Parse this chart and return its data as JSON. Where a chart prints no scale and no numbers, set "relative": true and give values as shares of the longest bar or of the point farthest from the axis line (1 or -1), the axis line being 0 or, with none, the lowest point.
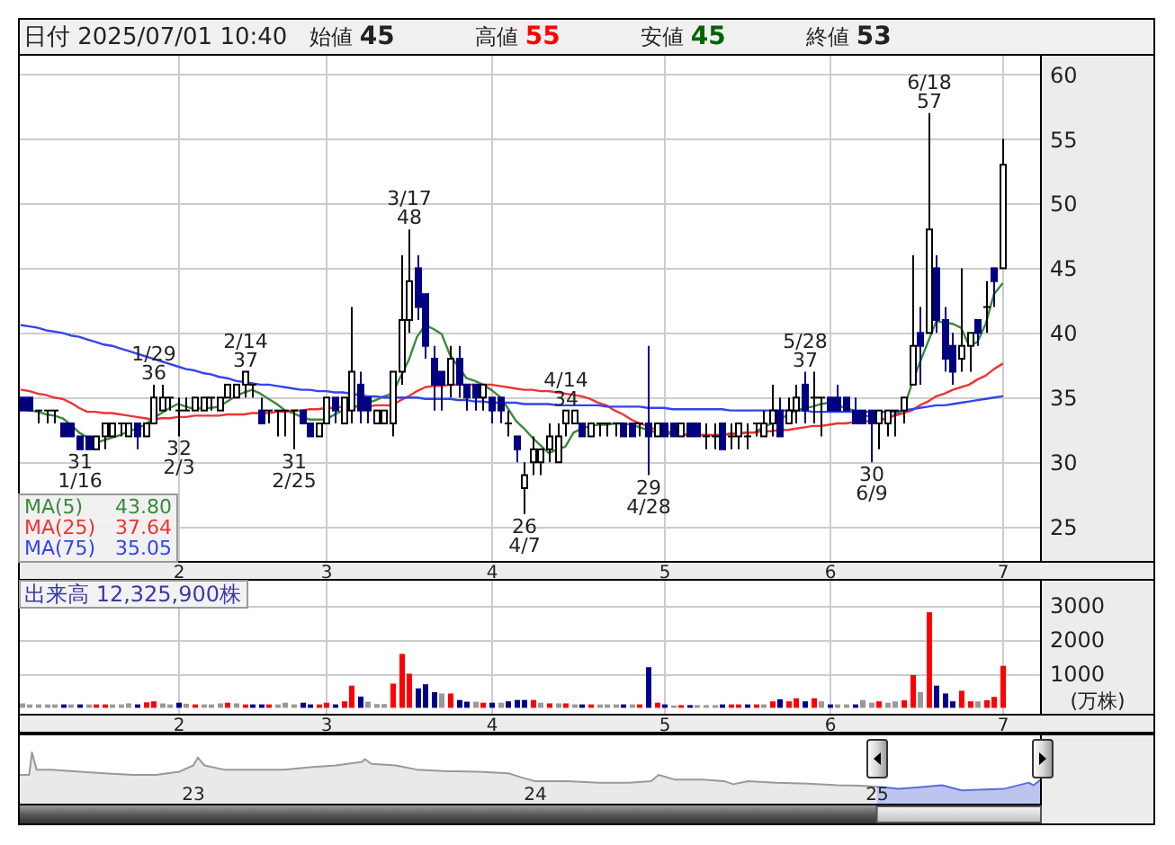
{
  "chart_data": [
    {
      "type": "candlestick",
      "title": "日付 2025/07/01 10:40",
      "annotations": [
        "始値 45",
        "高値 55",
        "安値 45",
        "終値 53"
      ],
      "categories": [
        null,
        null,
        null,
        null,
        null,
        null,
        null,
        null,
        null,
        null,
        null,
        null,
        null,
        null,
        null,
        null,
        null,
        null,
        null,
        "2",
        null,
        null,
        null,
        null,
        null,
        null,
        null,
        null,
        null,
        null,
        null,
        null,
        null,
        null,
        null,
        null,
        null,
        "3",
        null,
        null,
        null,
        null,
        null,
        null,
        null,
        null,
        null,
        null,
        null,
        null,
        null,
        null,
        null,
        null,
        null,
        null,
        null,
        "4",
        null,
        null,
        null,
        null,
        null,
        null,
        null,
        null,
        null,
        null,
        null,
        null,
        null,
        null,
        null,
        null,
        null,
        null,
        null,
        null,
        "5",
        null,
        null,
        null,
        null,
        null,
        null,
        null,
        null,
        null,
        null,
        null,
        null,
        null,
        null,
        null,
        null,
        null,
        null,
        null,
        "6",
        null,
        null,
        null,
        null,
        null,
        null,
        null,
        null,
        null,
        null,
        null,
        null,
        null,
        null,
        null,
        null,
        null,
        null,
        null,
        null,
        "7"
      ],
      "ohlc": [
        [
          35,
          35,
          34,
          34
        ],
        [
          35,
          35,
          34,
          34
        ],
        [
          34,
          34,
          33,
          34
        ],
        [
          34,
          34,
          33,
          34
        ],
        [
          34,
          34,
          33,
          34
        ],
        [
          33,
          33,
          32,
          32
        ],
        [
          33,
          33,
          32,
          32
        ],
        [
          32,
          32,
          31,
          31
        ],
        [
          32,
          32,
          31,
          31
        ],
        [
          31,
          32,
          31,
          32
        ],
        [
          32,
          33,
          31,
          33
        ],
        [
          32,
          33,
          32,
          33
        ],
        [
          33,
          33,
          32,
          33
        ],
        [
          32,
          33,
          32,
          33
        ],
        [
          33,
          33,
          31,
          32
        ],
        [
          32,
          33,
          32,
          33
        ],
        [
          33,
          36,
          33,
          35
        ],
        [
          34,
          36,
          34,
          35
        ],
        [
          35,
          35,
          34,
          35
        ],
        [
          34,
          35,
          32,
          34
        ],
        [
          34,
          35,
          34,
          34
        ],
        [
          34,
          35,
          34,
          35
        ],
        [
          34,
          35,
          34,
          35
        ],
        [
          35,
          35,
          34,
          35
        ],
        [
          34,
          35,
          34,
          35
        ],
        [
          35,
          36,
          35,
          36
        ],
        [
          35,
          36,
          35,
          36
        ],
        [
          36,
          37,
          35,
          37
        ],
        [
          36,
          36,
          35,
          36
        ],
        [
          34,
          35,
          33,
          33
        ],
        [
          34,
          34,
          33,
          34
        ],
        [
          34,
          34,
          32,
          34
        ],
        [
          34,
          34,
          32,
          34
        ],
        [
          34,
          34,
          31,
          34
        ],
        [
          34,
          34,
          33,
          33
        ],
        [
          33,
          33,
          32,
          32
        ],
        [
          32,
          33,
          32,
          33
        ],
        [
          33,
          35,
          33,
          35
        ],
        [
          35,
          35,
          33,
          34
        ],
        [
          33,
          35,
          33,
          35
        ],
        [
          34,
          42,
          33,
          37
        ],
        [
          36,
          37,
          33,
          34
        ],
        [
          35,
          35,
          33,
          34
        ],
        [
          33,
          34,
          33,
          34
        ],
        [
          33,
          34,
          33,
          34
        ],
        [
          33,
          37,
          32,
          37
        ],
        [
          37,
          46,
          36,
          41
        ],
        [
          41,
          48,
          40,
          44
        ],
        [
          45,
          46,
          41,
          42
        ],
        [
          43,
          43,
          38,
          39
        ],
        [
          38,
          39,
          34,
          36
        ],
        [
          37,
          37,
          34,
          36
        ],
        [
          36,
          39,
          35,
          38
        ],
        [
          38,
          39,
          35,
          36
        ],
        [
          36,
          36,
          34,
          35
        ],
        [
          36,
          36,
          34,
          35
        ],
        [
          35,
          36,
          34,
          36
        ],
        [
          35,
          35,
          33,
          34
        ],
        [
          35,
          35,
          33,
          34
        ],
        [
          33,
          34,
          32,
          33
        ],
        [
          32,
          32,
          30,
          31
        ],
        [
          28,
          30,
          26,
          29
        ],
        [
          30,
          32,
          29,
          31
        ],
        [
          30,
          31,
          29,
          31
        ],
        [
          31,
          33,
          30,
          32
        ],
        [
          30,
          33,
          30,
          32
        ],
        [
          33,
          34,
          32,
          34
        ],
        [
          33,
          34,
          33,
          34
        ],
        [
          33,
          33,
          32,
          32
        ],
        [
          32,
          33,
          32,
          33
        ],
        [
          33,
          33,
          32,
          33
        ],
        [
          33,
          33,
          32,
          33
        ],
        [
          33,
          33,
          32,
          33
        ],
        [
          33,
          33,
          32,
          32
        ],
        [
          33,
          33,
          32,
          32
        ],
        [
          33,
          33,
          32,
          33
        ],
        [
          33,
          39,
          29,
          32
        ],
        [
          32,
          33,
          32,
          33
        ],
        [
          33,
          33,
          32,
          32
        ],
        [
          33,
          33,
          32,
          32
        ],
        [
          32,
          33,
          32,
          33
        ],
        [
          33,
          33,
          32,
          32
        ],
        [
          33,
          33,
          32,
          32
        ],
        [
          32,
          33,
          31,
          32
        ],
        [
          32,
          33,
          31,
          32
        ],
        [
          33,
          33,
          31,
          31
        ],
        [
          32,
          33,
          31,
          32
        ],
        [
          32,
          33,
          31,
          33
        ],
        [
          32,
          33,
          31,
          32
        ],
        [
          33,
          33,
          32,
          33
        ],
        [
          32,
          34,
          32,
          33
        ],
        [
          33,
          36,
          32,
          34
        ],
        [
          34,
          35,
          32,
          32
        ],
        [
          33,
          35,
          33,
          34
        ],
        [
          34,
          36,
          33,
          35
        ],
        [
          36,
          37,
          33,
          34
        ],
        [
          35,
          37,
          33,
          35
        ],
        [
          35,
          35,
          32,
          35
        ],
        [
          35,
          35,
          34,
          34
        ],
        [
          35,
          36,
          34,
          34
        ],
        [
          35,
          35,
          34,
          34
        ],
        [
          34,
          35,
          33,
          33
        ],
        [
          34,
          34,
          33,
          33
        ],
        [
          34,
          34,
          30,
          33
        ],
        [
          33,
          34,
          31,
          34
        ],
        [
          33,
          34,
          32,
          34
        ],
        [
          34,
          34,
          32,
          34
        ],
        [
          34,
          35,
          33,
          35
        ],
        [
          36,
          46,
          36,
          39
        ],
        [
          40,
          42,
          36,
          39
        ],
        [
          40,
          57,
          40,
          48
        ],
        [
          45,
          46,
          40,
          41
        ],
        [
          41,
          42,
          37,
          38
        ],
        [
          39,
          40,
          36,
          37
        ],
        [
          38,
          45,
          37,
          39
        ],
        [
          39,
          40,
          37,
          40
        ],
        [
          41,
          41,
          39,
          40
        ],
        [
          42,
          44,
          40,
          42
        ],
        [
          45,
          45,
          42,
          44
        ],
        [
          45,
          55,
          45,
          53
        ]
      ],
      "value_labels": [
        null,
        null,
        null,
        null,
        null,
        null,
        null,
        "31\n1/16",
        null,
        null,
        null,
        null,
        null,
        null,
        null,
        null,
        "1/29\n36",
        null,
        null,
        "32\n2/3",
        null,
        null,
        null,
        null,
        null,
        null,
        null,
        "2/14\n37",
        null,
        null,
        null,
        null,
        null,
        "31\n2/25",
        null,
        null,
        null,
        null,
        null,
        null,
        null,
        null,
        null,
        null,
        null,
        null,
        null,
        "3/17\n48",
        null,
        null,
        null,
        null,
        null,
        null,
        null,
        null,
        null,
        null,
        null,
        null,
        null,
        "26\n4/7",
        null,
        null,
        null,
        null,
        "4/14\n34",
        null,
        null,
        null,
        null,
        null,
        null,
        null,
        null,
        null,
        "29\n4/28",
        null,
        null,
        null,
        null,
        null,
        null,
        null,
        null,
        null,
        null,
        null,
        null,
        null,
        null,
        null,
        null,
        null,
        null,
        "5/28\n37",
        null,
        null,
        null,
        null,
        null,
        null,
        null,
        "30\n6/9",
        null,
        null,
        null,
        null,
        null,
        null,
        "6/18\n57",
        null,
        null,
        null,
        null,
        null,
        null,
        null,
        null,
        null
      ],
      "colors": [
        "#000080",
        "#000080",
        "#000000",
        "#000000",
        "#000000",
        "#000080",
        "#000080",
        "#000080",
        "#000080",
        "#ffffff",
        "#ffffff",
        "#ffffff",
        "#000000",
        "#ffffff",
        "#000080",
        "#ffffff",
        "#ffffff",
        "#ffffff",
        "#000000",
        "#000000",
        "#000000",
        "#ffffff",
        "#ffffff",
        "#000000",
        "#ffffff",
        "#ffffff",
        "#ffffff",
        "#ffffff",
        "#000000",
        "#000080",
        "#000000",
        "#000000",
        "#000000",
        "#000000",
        "#000080",
        "#000080",
        "#ffffff",
        "#ffffff",
        "#000080",
        "#ffffff",
        "#ffffff",
        "#000080",
        "#000080",
        "#ffffff",
        "#ffffff",
        "#ffffff",
        "#ffffff",
        "#ffffff",
        "#000080",
        "#000080",
        "#000080",
        "#000080",
        "#ffffff",
        "#000080",
        "#000080",
        "#000080",
        "#ffffff",
        "#000080",
        "#000080",
        "#000000",
        "#000080",
        "#ffffff",
        "#ffffff",
        "#ffffff",
        "#ffffff",
        "#ffffff",
        "#ffffff",
        "#ffffff",
        "#000080",
        "#ffffff",
        "#000000",
        "#000000",
        "#000000",
        "#000080",
        "#000080",
        "#000000",
        "#000080",
        "#ffffff",
        "#000080",
        "#000080",
        "#ffffff",
        "#000080",
        "#000080",
        "#000000",
        "#000000",
        "#000080",
        "#000000",
        "#ffffff",
        "#000000",
        "#000000",
        "#ffffff",
        "#ffffff",
        "#000080",
        "#ffffff",
        "#ffffff",
        "#000080",
        "#000000",
        "#000000",
        "#000080",
        "#000080",
        "#000080",
        "#000080",
        "#000080",
        "#000080",
        "#ffffff",
        "#ffffff",
        "#000000",
        "#ffffff",
        "#ffffff",
        "#000080",
        "#ffffff",
        "#000080",
        "#000080",
        "#000080",
        "#ffffff",
        "#ffffff",
        "#000080",
        "#000000",
        "#000080",
        "#ffffff"
      ],
      "series": [
        {
          "name": "MA(5) 43.80",
          "type": "line",
          "color": "#3a8a3a",
          "values": [
            34.1,
            34.0,
            33.9,
            33.7,
            33.6,
            33.4,
            32.9,
            32.3,
            31.9,
            31.5,
            31.7,
            31.9,
            32.1,
            32.4,
            32.6,
            32.9,
            33.4,
            33.8,
            34.2,
            34.5,
            34.3,
            34.1,
            34.2,
            34.2,
            34.3,
            34.7,
            35.1,
            35.4,
            35.6,
            35.3,
            34.9,
            34.5,
            34.0,
            33.8,
            33.5,
            33.3,
            33.3,
            33.3,
            33.7,
            34.0,
            34.2,
            34.4,
            34.6,
            34.8,
            35.1,
            35.3,
            36.6,
            37.9,
            39.7,
            40.6,
            40.3,
            39.9,
            38.3,
            37.4,
            36.5,
            36.3,
            36.0,
            35.6,
            35.1,
            34.2,
            33.2,
            32.6,
            31.9,
            31.3,
            30.7,
            31.0,
            31.2,
            32.3,
            32.6,
            32.8,
            32.9,
            32.9,
            33.0,
            33.0,
            32.9,
            32.7,
            32.5,
            32.3,
            32.2,
            32.2,
            32.1,
            32.1,
            32.1,
            32.1,
            32.1,
            32.1,
            32.2,
            32.2,
            32.3,
            32.3,
            32.7,
            33.0,
            33.3,
            33.7,
            34.0,
            34.2,
            34.3,
            34.5,
            34.6,
            34.4,
            34.2,
            34.0,
            33.7,
            33.5,
            33.4,
            33.3,
            33.7,
            34.0,
            36.0,
            37.7,
            39.3,
            40.9,
            40.8,
            40.7,
            40.4,
            39.0,
            39.3,
            40.7,
            43.0,
            43.8
          ]
        },
        {
          "name": "MA(25) 37.64",
          "type": "line",
          "color": "#ee3333",
          "values": [
            35.6,
            35.5,
            35.3,
            35.2,
            35.0,
            34.9,
            34.6,
            34.2,
            33.9,
            33.9,
            33.8,
            33.8,
            33.7,
            33.6,
            33.5,
            33.4,
            33.3,
            33.4,
            33.4,
            33.5,
            33.5,
            33.6,
            33.6,
            33.6,
            33.6,
            33.7,
            33.7,
            33.7,
            33.8,
            33.8,
            33.8,
            33.9,
            33.9,
            34.0,
            34.0,
            34.1,
            34.1,
            34.2,
            34.2,
            34.3,
            34.3,
            34.3,
            34.3,
            34.4,
            34.4,
            34.4,
            34.8,
            35.1,
            35.5,
            35.8,
            35.9,
            35.9,
            36.0,
            36.0,
            36.0,
            36.0,
            36.0,
            36.0,
            35.9,
            35.8,
            35.7,
            35.6,
            35.6,
            35.5,
            35.5,
            35.4,
            35.3,
            35.2,
            35.1,
            34.9,
            34.6,
            34.4,
            34.0,
            33.7,
            33.3,
            33.0,
            32.8,
            32.5,
            32.4,
            32.3,
            32.2,
            32.1,
            32.1,
            32.1,
            32.1,
            32.1,
            32.2,
            32.2,
            32.3,
            32.3,
            32.4,
            32.4,
            32.5,
            32.5,
            32.6,
            32.7,
            32.8,
            32.8,
            32.9,
            33.0,
            33.0,
            33.1,
            33.1,
            33.2,
            33.2,
            33.4,
            33.6,
            33.8,
            34.0,
            34.4,
            34.7,
            35.1,
            35.3,
            35.6,
            35.8,
            36.0,
            36.4,
            36.7,
            37.2,
            37.6
          ]
        },
        {
          "name": "MA(75) 35.05",
          "type": "line",
          "color": "#3344ee",
          "values": [
            40.6,
            40.5,
            40.4,
            40.2,
            40.1,
            40.0,
            39.8,
            39.7,
            39.5,
            39.3,
            39.1,
            39.0,
            38.8,
            38.6,
            38.4,
            38.2,
            38.0,
            37.8,
            37.6,
            37.4,
            37.2,
            37.1,
            36.9,
            36.8,
            36.6,
            36.5,
            36.3,
            36.2,
            36.1,
            36.0,
            36.0,
            35.9,
            35.8,
            35.7,
            35.6,
            35.6,
            35.5,
            35.5,
            35.4,
            35.4,
            35.3,
            35.2,
            35.1,
            35.1,
            35.0,
            35.0,
            35.0,
            35.0,
            35.0,
            34.9,
            34.9,
            34.9,
            34.9,
            34.8,
            34.8,
            34.7,
            34.7,
            34.6,
            34.6,
            34.6,
            34.6,
            34.5,
            34.5,
            34.5,
            34.5,
            34.4,
            34.4,
            34.4,
            34.4,
            34.4,
            34.4,
            34.3,
            34.3,
            34.3,
            34.3,
            34.3,
            34.2,
            34.2,
            34.2,
            34.1,
            34.1,
            34.1,
            34.1,
            34.1,
            34.1,
            34.1,
            34.0,
            34.0,
            34.0,
            34.0,
            34.0,
            34.0,
            34.0,
            34.0,
            34.0,
            34.0,
            33.9,
            33.9,
            33.9,
            33.9,
            33.9,
            33.9,
            33.9,
            33.9,
            33.9,
            33.9,
            33.9,
            34.0,
            34.1,
            34.2,
            34.3,
            34.4,
            34.4,
            34.5,
            34.6,
            34.7,
            34.8,
            34.9,
            35.0,
            35.1
          ]
        }
      ],
      "ylim": [
        22.3,
        61.5
      ],
      "yticks": [
        25,
        30,
        35,
        40,
        45,
        50,
        55,
        60
      ],
      "grid": true,
      "legend": "bottom left"
    },
    {
      "type": "bar",
      "title": "出来高 12,325,900株",
      "ylabel": "(万株)",
      "categories": [
        null,
        null,
        null,
        null,
        null,
        null,
        null,
        null,
        null,
        null,
        null,
        null,
        null,
        null,
        null,
        null,
        null,
        null,
        null,
        "2",
        null,
        null,
        null,
        null,
        null,
        null,
        null,
        null,
        null,
        null,
        null,
        null,
        null,
        null,
        null,
        null,
        null,
        "3",
        null,
        null,
        null,
        null,
        null,
        null,
        null,
        null,
        null,
        null,
        null,
        null,
        null,
        null,
        null,
        null,
        null,
        null,
        null,
        "4",
        null,
        null,
        null,
        null,
        null,
        null,
        null,
        null,
        null,
        null,
        null,
        null,
        null,
        null,
        null,
        null,
        null,
        null,
        null,
        null,
        "5",
        null,
        null,
        null,
        null,
        null,
        null,
        null,
        null,
        null,
        null,
        null,
        null,
        null,
        null,
        null,
        null,
        null,
        null,
        null,
        "6",
        null,
        null,
        null,
        null,
        null,
        null,
        null,
        null,
        null,
        null,
        null,
        null,
        null,
        null,
        null,
        null,
        null,
        null,
        null,
        null,
        "7"
      ],
      "values": [
        130,
        100,
        100,
        100,
        100,
        100,
        100,
        100,
        100,
        100,
        100,
        100,
        100,
        130,
        100,
        160,
        190,
        130,
        100,
        150,
        120,
        100,
        100,
        100,
        130,
        150,
        130,
        100,
        100,
        100,
        100,
        100,
        150,
        100,
        150,
        100,
        100,
        150,
        100,
        190,
        650,
        330,
        180,
        110,
        110,
        710,
        1580,
        1000,
        570,
        690,
        460,
        420,
        420,
        230,
        180,
        180,
        150,
        150,
        150,
        190,
        230,
        230,
        230,
        150,
        130,
        130,
        130,
        100,
        100,
        100,
        100,
        100,
        100,
        100,
        100,
        100,
        1190,
        150,
        100,
        70,
        80,
        80,
        80,
        80,
        80,
        100,
        100,
        100,
        100,
        100,
        100,
        190,
        250,
        190,
        280,
        190,
        280,
        190,
        100,
        100,
        100,
        100,
        230,
        150,
        190,
        150,
        190,
        220,
        960,
        460,
        2800,
        650,
        420,
        190,
        500,
        190,
        190,
        220,
        320,
        1230
      ],
      "colors": [
        "#999999",
        "#999999",
        "#999999",
        "#999999",
        "#999999",
        "#00008b",
        "#999999",
        "#00008b",
        "#999999",
        "#ff0000",
        "#ff0000",
        "#999999",
        "#999999",
        "#999999",
        "#00008b",
        "#ff0000",
        "#ff0000",
        "#999999",
        "#999999",
        "#00008b",
        "#999999",
        "#ff0000",
        "#999999",
        "#999999",
        "#999999",
        "#ff0000",
        "#999999",
        "#ff0000",
        "#00008b",
        "#00008b",
        "#ff0000",
        "#999999",
        "#999999",
        "#999999",
        "#00008b",
        "#00008b",
        "#ff0000",
        "#ff0000",
        "#00008b",
        "#ff0000",
        "#ff0000",
        "#00008b",
        "#999999",
        "#999999",
        "#999999",
        "#ff0000",
        "#ff0000",
        "#ff0000",
        "#00008b",
        "#00008b",
        "#00008b",
        "#999999",
        "#ff0000",
        "#00008b",
        "#00008b",
        "#999999",
        "#ff0000",
        "#00008b",
        "#999999",
        "#00008b",
        "#00008b",
        "#00008b",
        "#ff0000",
        "#999999",
        "#ff0000",
        "#999999",
        "#ff0000",
        "#999999",
        "#00008b",
        "#ff0000",
        "#999999",
        "#999999",
        "#999999",
        "#00008b",
        "#999999",
        "#ff0000",
        "#00008b",
        "#ff0000",
        "#00008b",
        "#999999",
        "#ff0000",
        "#00008b",
        "#999999",
        "#999999",
        "#999999",
        "#00008b",
        "#ff0000",
        "#ff0000",
        "#00008b",
        "#ff0000",
        "#999999",
        "#ff0000",
        "#00008b",
        "#ff0000",
        "#ff0000",
        "#00008b",
        "#ff0000",
        "#999999",
        "#00008b",
        "#999999",
        "#999999",
        "#00008b",
        "#999999",
        "#999999",
        "#ff0000",
        "#999999",
        "#999999",
        "#ff0000",
        "#ff0000",
        "#999999",
        "#ff0000",
        "#00008b",
        "#00008b",
        "#00008b",
        "#ff0000",
        "#ff0000",
        "#999999",
        "#ff0000",
        "#ff0000",
        "#ff0000"
      ],
      "ylim": [
        -200,
        3750
      ],
      "yticks": [
        1000,
        2000,
        3000
      ],
      "grid": true
    },
    {
      "type": "area",
      "relative": true,
      "series": [
        {
          "color": "#999999",
          "x": [
            "2022-07-01",
            "2022-07-12",
            "2022-07-15",
            "2022-07-20",
            "2022-08-05",
            "2022-08-29",
            "2022-09-30",
            "2022-11-01",
            "2022-11-25",
            "2022-12-20",
            "2023-01-04",
            "2023-01-09",
            "2023-01-16",
            "2023-02-06",
            "2023-03-10",
            "2023-04-11",
            "2023-05-12",
            "2023-06-06",
            "2023-07-04",
            "2023-07-07",
            "2023-07-14",
            "2023-08-09",
            "2023-09-01",
            "2023-10-05",
            "2023-11-06",
            "2023-12-08",
            "2023-12-22",
            "2024-01-05",
            "2024-02-09",
            "2024-03-14",
            "2024-04-15",
            "2024-05-09",
            "2024-05-17",
            "2024-06-03",
            "2024-07-04",
            "2024-07-26",
            "2024-08-05",
            "2024-08-21",
            "2024-09-20",
            "2024-10-24",
            "2024-11-25",
            "2024-12-19",
            "2025-01-06"
          ],
          "values": [
            0.57,
            0.57,
            1.0,
            0.67,
            0.67,
            0.64,
            0.6,
            0.57,
            0.57,
            0.63,
            0.75,
            0.9,
            0.75,
            0.67,
            0.67,
            0.67,
            0.72,
            0.75,
            0.82,
            0.87,
            0.78,
            0.75,
            0.67,
            0.64,
            0.63,
            0.6,
            0.52,
            0.45,
            0.45,
            0.42,
            0.42,
            0.45,
            0.57,
            0.48,
            0.48,
            0.45,
            0.39,
            0.45,
            0.42,
            0.4,
            0.37,
            0.36,
            0.34
          ]
        },
        {
          "color": "#5b6ed8",
          "x": [
            "2025-01-06",
            "2025-01-14",
            "2025-01-29",
            "2025-03-17",
            "2025-04-07",
            "2025-05-22",
            "2025-06-18",
            "2025-06-23",
            "2025-07-01"
          ],
          "values": [
            0.34,
            0.33,
            0.3,
            0.37,
            0.27,
            0.3,
            0.42,
            0.37,
            0.48
          ]
        }
      ],
      "xlim": [
        "2022-07-01",
        "2025-07-01"
      ],
      "xticks": [
        {
          "value": "2023-01-04",
          "label": "23"
        },
        {
          "value": "2024-01-04",
          "label": "24"
        },
        {
          "value": "2025-01-06",
          "label": "25"
        }
      ]
    }
  ]
}
